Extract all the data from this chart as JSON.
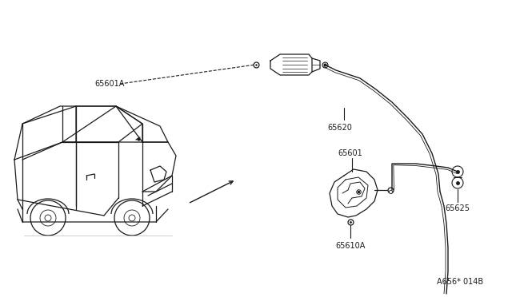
{
  "bg_color": "#ffffff",
  "line_color": "#1a1a1a",
  "text_color": "#1a1a1a",
  "watermark_text": "A656* 014B",
  "fig_w": 6.4,
  "fig_h": 3.72,
  "dpi": 100
}
